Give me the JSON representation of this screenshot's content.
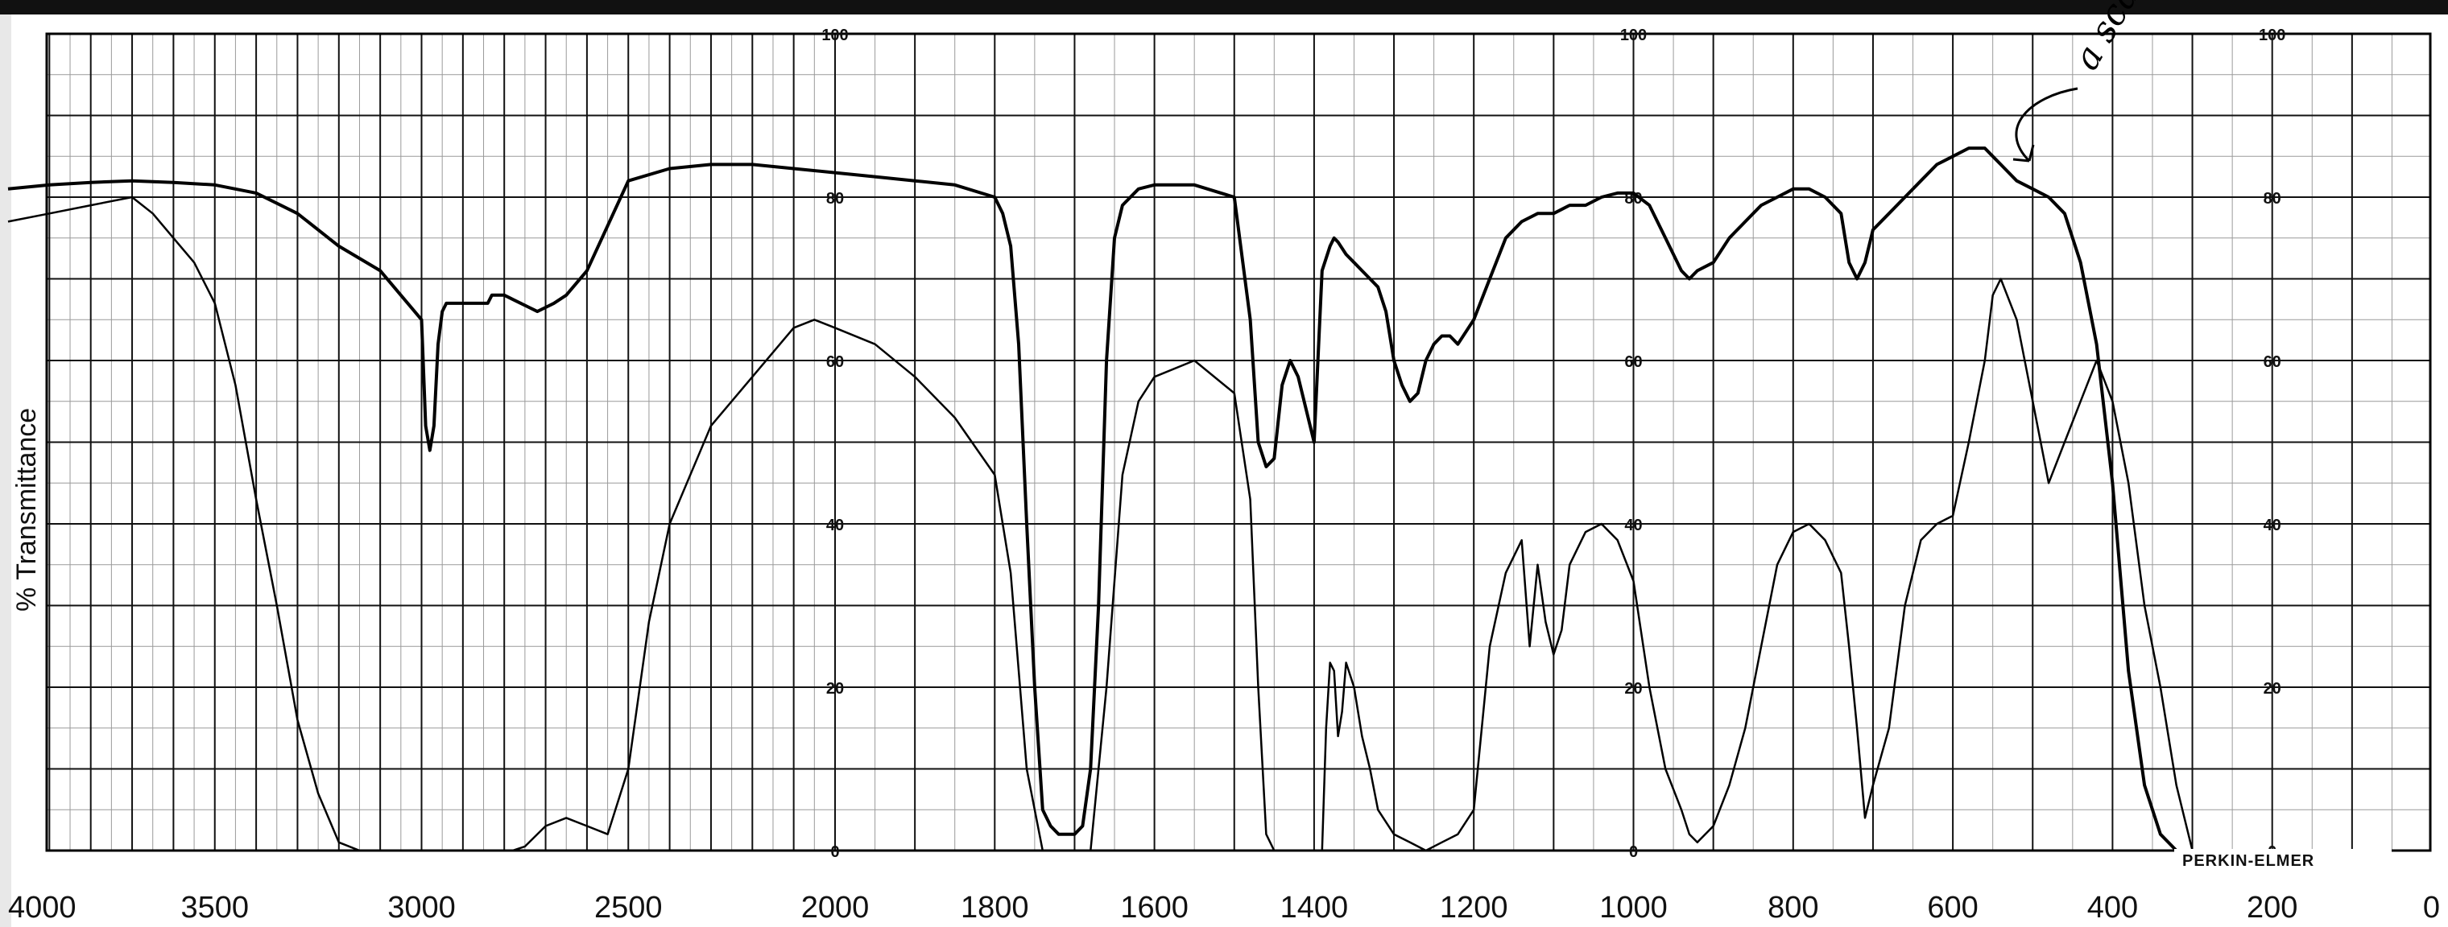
{
  "chart_data": {
    "type": "line",
    "title": "",
    "xlabel": "",
    "ylabel": "% Transmittance",
    "brand": "PERKIN-ELMER",
    "xlim": [
      4000,
      0
    ],
    "ylim": [
      0,
      100
    ],
    "x_ticks": [
      {
        "value": 4000,
        "label": "4000"
      },
      {
        "value": 3500,
        "label": "3500"
      },
      {
        "value": 3000,
        "label": "3000"
      },
      {
        "value": 2500,
        "label": "2500"
      },
      {
        "value": 2000,
        "label": "2000"
      },
      {
        "value": 1800,
        "label": "1800"
      },
      {
        "value": 1600,
        "label": "1600"
      },
      {
        "value": 1400,
        "label": "1400"
      },
      {
        "value": 1200,
        "label": "1200"
      },
      {
        "value": 1000,
        "label": "1000"
      },
      {
        "value": 800,
        "label": "800"
      },
      {
        "value": 600,
        "label": "600"
      },
      {
        "value": 400,
        "label": "400"
      },
      {
        "value": 200,
        "label": "200"
      },
      {
        "value": 0,
        "label": "0"
      }
    ],
    "y_scale_labels": [
      "100",
      "80",
      "60",
      "40",
      "20",
      "0"
    ],
    "grid": true,
    "annotation": "a scale change in a filter, the drawing is more frequent to the left",
    "series": [
      {
        "x": [
          4000,
          3900,
          3800,
          3700,
          3600,
          3500,
          3400,
          3300,
          3200,
          3100,
          3050,
          3000,
          2990,
          2980,
          2970,
          2960,
          2950,
          2940,
          2930,
          2920,
          2910,
          2900,
          2890,
          2880,
          2870,
          2860,
          2850,
          2840,
          2830,
          2820,
          2800,
          2780,
          2760,
          2740,
          2720,
          2700,
          2680,
          2650,
          2600,
          2500,
          2400,
          2300,
          2200,
          2100,
          2000,
          1950,
          1900,
          1850,
          1800,
          1790,
          1780,
          1770,
          1760,
          1750,
          1740,
          1730,
          1720,
          1710,
          1700,
          1690,
          1680,
          1670,
          1660,
          1650,
          1640,
          1620,
          1600,
          1550,
          1500,
          1480,
          1470,
          1460,
          1450,
          1440,
          1430,
          1420,
          1410,
          1400,
          1390,
          1380,
          1375,
          1370,
          1360,
          1350,
          1340,
          1330,
          1320,
          1310,
          1300,
          1290,
          1280,
          1270,
          1260,
          1250,
          1240,
          1230,
          1220,
          1200,
          1180,
          1160,
          1140,
          1120,
          1100,
          1080,
          1060,
          1040,
          1020,
          1000,
          980,
          960,
          940,
          930,
          920,
          900,
          880,
          860,
          840,
          820,
          800,
          780,
          760,
          740,
          730,
          720,
          710,
          700,
          680,
          660,
          640,
          620,
          600,
          580,
          560,
          550,
          540,
          520,
          500,
          480,
          460,
          440,
          420,
          400,
          380,
          360,
          340,
          320,
          300
        ],
        "y": [
          81,
          81.5,
          81.8,
          82,
          81.8,
          81.5,
          80.5,
          78,
          74,
          71,
          68,
          65,
          52,
          49,
          52,
          62,
          66,
          67,
          67,
          67,
          67,
          67,
          67,
          67,
          67,
          67,
          67,
          67,
          68,
          68,
          68,
          67.5,
          67,
          66.5,
          66,
          66.5,
          67,
          68,
          71,
          82,
          83.5,
          84,
          84,
          83.5,
          83,
          82.5,
          82,
          81.5,
          80,
          78,
          74,
          62,
          40,
          20,
          5,
          3,
          2,
          2,
          2,
          3,
          10,
          30,
          60,
          75,
          79,
          81,
          81.5,
          81.5,
          80,
          65,
          50,
          47,
          48,
          57,
          60,
          58,
          54,
          50,
          71,
          74,
          75,
          74.5,
          73,
          72,
          71,
          70,
          69,
          66,
          60,
          57,
          55,
          56,
          60,
          62,
          63,
          63,
          62,
          65,
          70,
          75,
          77,
          78,
          78,
          79,
          79,
          80,
          80.5,
          80.5,
          79,
          75,
          71,
          70,
          71,
          72,
          75,
          77,
          79,
          80,
          81,
          81,
          80,
          78,
          72,
          70,
          72,
          76,
          78,
          80,
          82,
          84,
          85,
          86,
          86,
          85,
          84,
          82,
          81,
          80,
          78,
          72,
          62,
          45,
          22,
          8,
          2,
          0,
          0
        ]
      },
      {
        "x": [
          4000,
          3900,
          3800,
          3700,
          3650,
          3600,
          3550,
          3500,
          3450,
          3400,
          3350,
          3300,
          3250,
          3200,
          3150,
          3100,
          3050,
          3000,
          2990,
          2980,
          2970,
          2960,
          2950,
          2940,
          2930,
          2920,
          2910,
          2900,
          2890,
          2880,
          2870,
          2860,
          2850,
          2840,
          2830,
          2820,
          2800,
          2780,
          2750,
          2700,
          2650,
          2600,
          2550,
          2500,
          2450,
          2400,
          2300,
          2200,
          2100,
          2050,
          2000,
          1950,
          1900,
          1850,
          1800,
          1780,
          1760,
          1740,
          1720,
          1700,
          1680,
          1660,
          1640,
          1620,
          1600,
          1550,
          1500,
          1480,
          1470,
          1460,
          1450,
          1440,
          1430,
          1420,
          1410,
          1400,
          1390,
          1385,
          1380,
          1375,
          1370,
          1365,
          1360,
          1350,
          1340,
          1330,
          1320,
          1300,
          1280,
          1260,
          1240,
          1220,
          1200,
          1180,
          1160,
          1140,
          1130,
          1120,
          1110,
          1100,
          1090,
          1080,
          1060,
          1040,
          1020,
          1000,
          980,
          960,
          940,
          930,
          920,
          900,
          880,
          860,
          840,
          820,
          800,
          780,
          760,
          740,
          730,
          720,
          710,
          700,
          680,
          660,
          640,
          620,
          600,
          580,
          560,
          550,
          540,
          520,
          500,
          480,
          460,
          440,
          420,
          400,
          380,
          360,
          340,
          320,
          300
        ],
        "y": [
          77,
          78,
          79,
          80,
          78,
          75,
          72,
          67,
          57,
          43,
          30,
          16,
          7,
          1,
          0,
          0,
          0,
          0,
          0,
          0,
          0,
          0,
          0,
          0,
          0,
          0,
          0,
          0,
          0,
          0,
          0,
          0,
          0,
          0,
          0,
          0,
          0,
          0,
          0.5,
          3,
          4,
          3,
          2,
          10,
          28,
          40,
          52,
          58,
          64,
          65,
          64,
          62,
          58,
          53,
          46,
          34,
          10,
          0,
          0,
          0,
          0,
          20,
          46,
          55,
          58,
          60,
          56,
          43,
          20,
          2,
          0,
          0,
          0,
          0,
          0,
          0,
          0,
          15,
          23,
          22,
          14,
          17,
          23,
          20,
          14,
          10,
          5,
          2,
          1,
          0,
          1,
          2,
          5,
          25,
          34,
          38,
          25,
          35,
          28,
          24,
          27,
          35,
          39,
          40,
          38,
          33,
          20,
          10,
          5,
          2,
          1,
          3,
          8,
          15,
          25,
          35,
          39,
          40,
          38,
          34,
          25,
          15,
          4,
          8,
          15,
          30,
          38,
          40,
          41,
          50,
          60,
          68,
          70,
          65,
          55,
          45,
          50,
          55,
          60,
          55,
          45,
          30,
          20,
          8,
          0
        ]
      }
    ]
  }
}
